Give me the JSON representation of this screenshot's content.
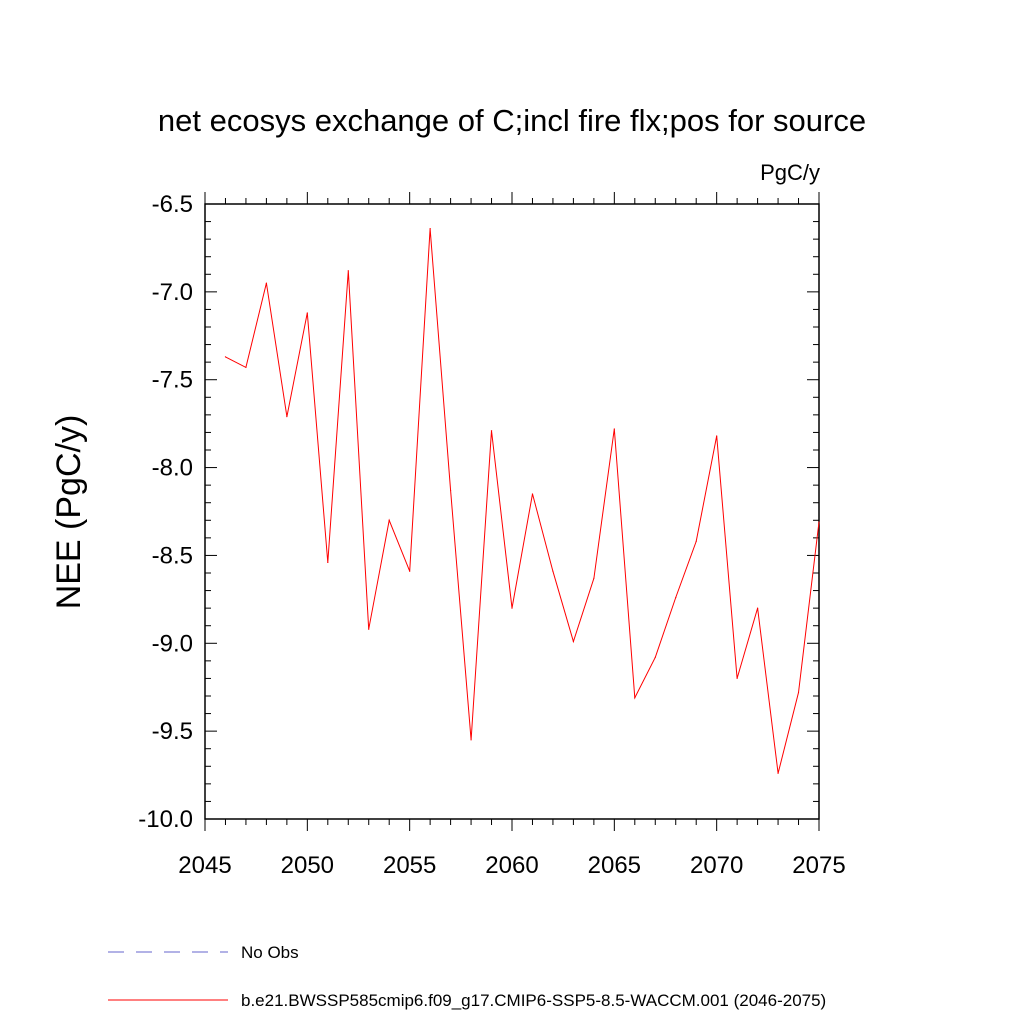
{
  "chart_data": {
    "type": "line",
    "title": "net ecosys exchange of C;incl fire flx;pos for source",
    "units": "PgC/y",
    "xlabel": "",
    "ylabel": "NEE  (PgC/y)",
    "xlim": [
      2045,
      2075
    ],
    "ylim": [
      -10.0,
      -6.5
    ],
    "xticks": [
      "2045",
      "2050",
      "2055",
      "2060",
      "2065",
      "2070",
      "2075"
    ],
    "yticks": [
      "-6.5",
      "-7.0",
      "-7.5",
      "-8.0",
      "-8.5",
      "-9.0",
      "-9.5",
      "-10.0"
    ],
    "legend_position": "bottom-left",
    "series": [
      {
        "name": "b.e21.BWSSP585cmip6.f09_g17.CMIP6-SSP5-8.5-WACCM.001 (2046-2075)",
        "color": "#ff0000",
        "style": "solid",
        "x": [
          2046,
          2047,
          2048,
          2049,
          2050,
          2051,
          2052,
          2053,
          2054,
          2055,
          2056,
          2057,
          2058,
          2059,
          2060,
          2061,
          2062,
          2063,
          2064,
          2065,
          2066,
          2067,
          2068,
          2069,
          2070,
          2071,
          2072,
          2073,
          2074,
          2075
        ],
        "values": [
          -7.37,
          -7.43,
          -6.95,
          -7.71,
          -7.12,
          -8.54,
          -6.88,
          -8.92,
          -8.3,
          -8.59,
          -6.64,
          -8.13,
          -9.55,
          -7.79,
          -8.8,
          -8.15,
          -8.59,
          -8.99,
          -8.63,
          -7.78,
          -9.31,
          -9.08,
          -8.74,
          -8.42,
          -7.82,
          -9.2,
          -8.8,
          -9.74,
          -9.28,
          -8.31
        ]
      }
    ],
    "legend": [
      {
        "label": "No Obs",
        "color": "#6666cc",
        "style": "dashed"
      },
      {
        "label": "b.e21.BWSSP585cmip6.f09_g17.CMIP6-SSP5-8.5-WACCM.001 (2046-2075)",
        "color": "#ff0000",
        "style": "solid"
      }
    ]
  }
}
